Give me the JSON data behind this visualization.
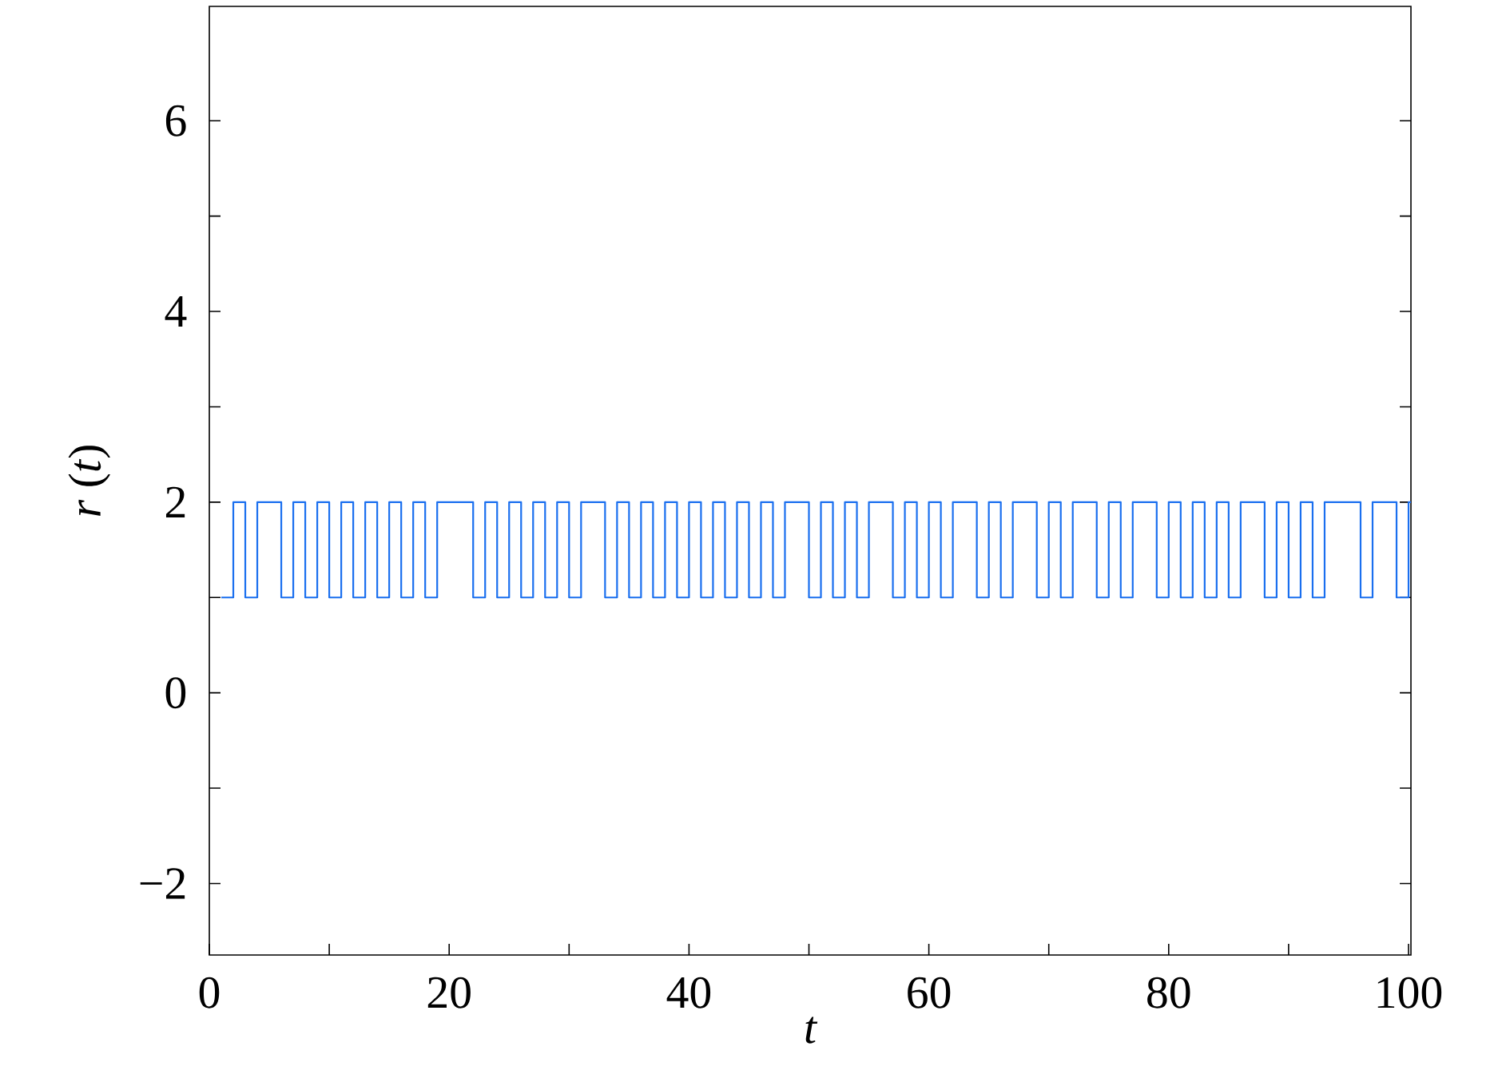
{
  "chart_data": {
    "type": "step",
    "xlabel": "t",
    "ylabel": "*r* (*t*)",
    "x": [
      1,
      2,
      3,
      4,
      5,
      6,
      7,
      8,
      9,
      10,
      11,
      12,
      13,
      14,
      15,
      16,
      17,
      18,
      19,
      20,
      21,
      22,
      23,
      24,
      25,
      26,
      27,
      28,
      29,
      30,
      31,
      32,
      33,
      34,
      35,
      36,
      37,
      38,
      39,
      40,
      41,
      42,
      43,
      44,
      45,
      46,
      47,
      48,
      49,
      50,
      51,
      52,
      53,
      54,
      55,
      56,
      57,
      58,
      59,
      60,
      61,
      62,
      63,
      64,
      65,
      66,
      67,
      68,
      69,
      70,
      71,
      72,
      73,
      74,
      75,
      76,
      77,
      78,
      79,
      80,
      81,
      82,
      83,
      84,
      85,
      86,
      87,
      88,
      89,
      90,
      91,
      92,
      93,
      94,
      95,
      96,
      97,
      98,
      99,
      100
    ],
    "values": [
      1,
      2,
      1,
      2,
      2,
      1,
      2,
      1,
      2,
      1,
      2,
      1,
      2,
      1,
      2,
      1,
      2,
      1,
      2,
      2,
      2,
      1,
      2,
      1,
      2,
      1,
      2,
      1,
      2,
      1,
      2,
      2,
      1,
      2,
      1,
      2,
      1,
      2,
      1,
      2,
      1,
      2,
      1,
      2,
      1,
      2,
      1,
      2,
      2,
      1,
      2,
      1,
      2,
      1,
      2,
      2,
      1,
      2,
      1,
      2,
      1,
      2,
      2,
      1,
      2,
      1,
      2,
      2,
      1,
      2,
      1,
      2,
      2,
      1,
      2,
      1,
      2,
      2,
      1,
      2,
      1,
      2,
      1,
      2,
      1,
      2,
      2,
      1,
      2,
      1,
      2,
      1,
      2,
      2,
      2,
      1,
      2,
      2,
      1,
      2
    ],
    "color": "#1a6fef",
    "xlim": [
      0,
      100.2
    ],
    "ylim": [
      -2.75,
      7.2
    ],
    "xticks": [
      0,
      {
        "value": 10,
        "label": null
      },
      20,
      {
        "value": 30,
        "label": null
      },
      40,
      {
        "value": 50,
        "label": null
      },
      60,
      {
        "value": 70,
        "label": null
      },
      80,
      {
        "value": 90,
        "label": null
      },
      100
    ],
    "yticks": [
      {
        "value": -2,
        "label": "−2"
      },
      {
        "value": -1,
        "label": null
      },
      0,
      {
        "value": 1,
        "label": null
      },
      2,
      {
        "value": 3,
        "label": null
      },
      4,
      {
        "value": 5,
        "label": null
      },
      6
    ],
    "grid": false
  }
}
